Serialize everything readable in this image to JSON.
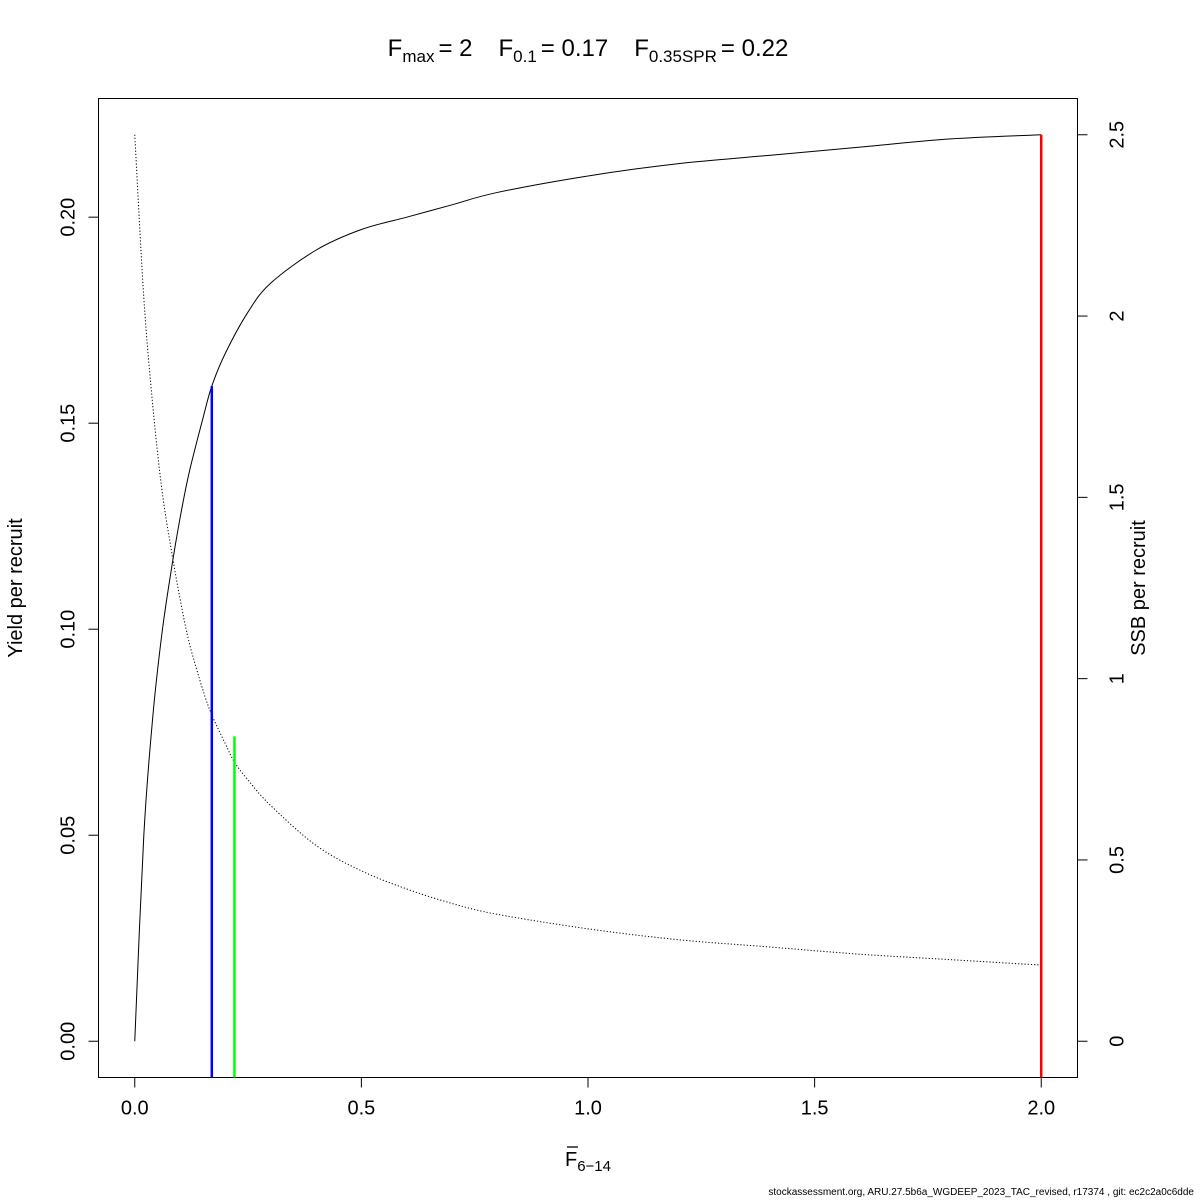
{
  "chart_data": {
    "type": "line",
    "title": {
      "fmax_sym": "F",
      "fmax_sub": "max",
      "fmax_val": "= 2",
      "f01_sym": "F",
      "f01_sub": "0.1",
      "f01_val": "= 0.17",
      "fspr_sym": "F",
      "fspr_sub": "0.35SPR",
      "fspr_val": "= 0.22"
    },
    "xlabel_sym": "F",
    "xlabel_sub": "6−14",
    "ylabel_left": "Yield per recruit",
    "ylabel_right": "SSB per recruit",
    "footer": "stockassessment.org, ARU.27.5b6a_WGDEEP_2023_TAC_revised, r17374 , git: ec2c2a0c6dde",
    "xlim": [
      -0.08,
      2.08
    ],
    "ylim_left": [
      -0.0088,
      0.2288
    ],
    "ylim_right": [
      -0.1,
      2.6
    ],
    "xticks": [
      0.0,
      0.5,
      1.0,
      1.5,
      2.0
    ],
    "xtick_labels": [
      "0.0",
      "0.5",
      "1.0",
      "1.5",
      "2.0"
    ],
    "yticks_left": [
      0.0,
      0.05,
      0.1,
      0.15,
      0.2
    ],
    "ytick_labels_left": [
      "0.00",
      "0.05",
      "0.10",
      "0.15",
      "0.20"
    ],
    "yticks_right": [
      0,
      0.5,
      1,
      1.5,
      2,
      2.5
    ],
    "ytick_labels_right": [
      "0",
      "0.5",
      "1",
      "1.5",
      "2",
      "2.5"
    ],
    "series": [
      {
        "name": "Yield per recruit",
        "axis": "left",
        "style": "solid",
        "color": "#000000",
        "x": [
          0.0,
          0.02,
          0.04,
          0.06,
          0.08,
          0.1,
          0.12,
          0.15,
          0.17,
          0.2,
          0.25,
          0.3,
          0.4,
          0.5,
          0.6,
          0.7,
          0.8,
          1.0,
          1.2,
          1.4,
          1.6,
          1.8,
          2.0
        ],
        "y": [
          0.0,
          0.05,
          0.079,
          0.099,
          0.114,
          0.127,
          0.138,
          0.151,
          0.159,
          0.167,
          0.177,
          0.184,
          0.192,
          0.197,
          0.2,
          0.203,
          0.206,
          0.21,
          0.213,
          0.215,
          0.217,
          0.219,
          0.22
        ]
      },
      {
        "name": "SSB per recruit",
        "axis": "right",
        "style": "dotted",
        "color": "#000000",
        "x": [
          0.0,
          0.02,
          0.04,
          0.06,
          0.08,
          0.1,
          0.12,
          0.15,
          0.17,
          0.2,
          0.22,
          0.25,
          0.3,
          0.4,
          0.5,
          0.6,
          0.7,
          0.8,
          1.0,
          1.2,
          1.4,
          1.6,
          1.8,
          2.0
        ],
        "y": [
          2.5,
          2.05,
          1.75,
          1.52,
          1.36,
          1.22,
          1.1,
          0.97,
          0.9,
          0.82,
          0.77,
          0.72,
          0.65,
          0.54,
          0.47,
          0.42,
          0.38,
          0.35,
          0.31,
          0.28,
          0.26,
          0.24,
          0.225,
          0.21
        ]
      }
    ],
    "reference_lines": [
      {
        "name": "F0.1",
        "x": 0.17,
        "y_top": 0.159,
        "color": "#0000ff"
      },
      {
        "name": "F0.35SPR",
        "x": 0.22,
        "y_top": 0.074,
        "color": "#00ff00"
      },
      {
        "name": "Fmax",
        "x": 2.0,
        "y_top": 0.22,
        "color": "#ff0000"
      }
    ],
    "grid": false
  }
}
